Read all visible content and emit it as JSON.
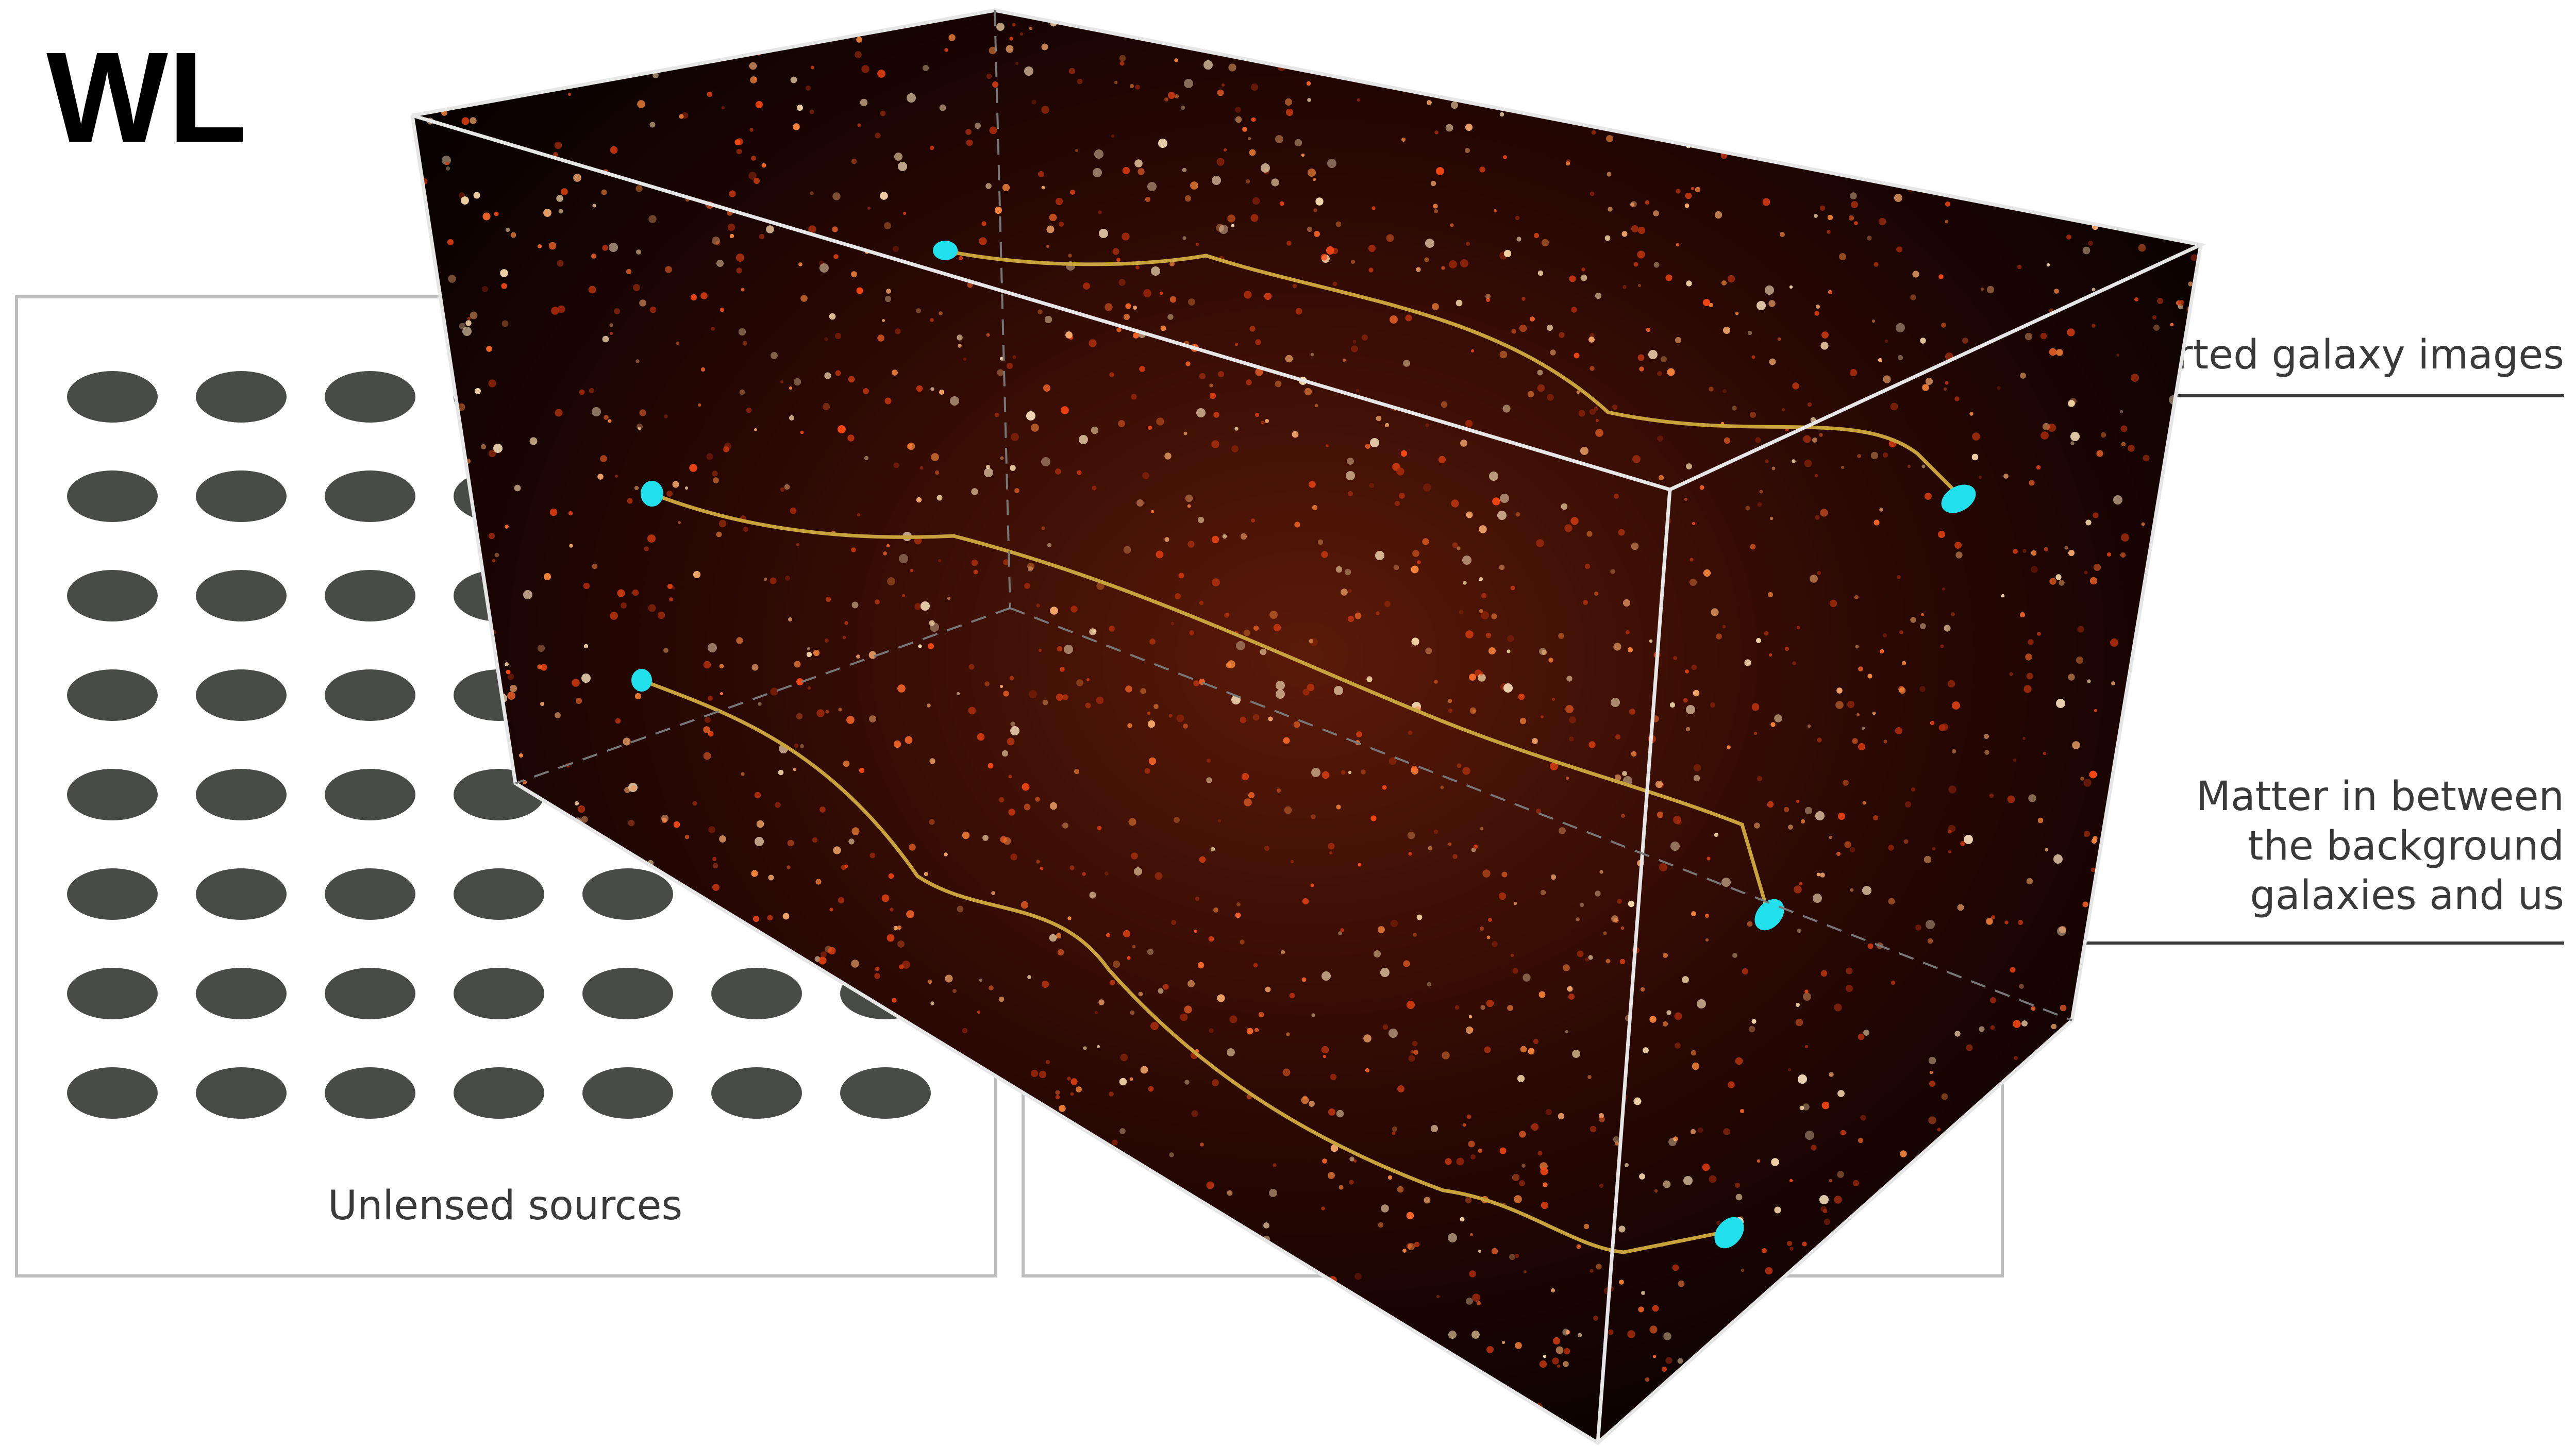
{
  "title": "WL",
  "labels": {
    "unlensed": "Unlensed sources",
    "distorted": "orted galaxy images",
    "matter": [
      "Matter in between",
      "the background",
      "galaxies and us"
    ]
  },
  "colors": {
    "panel_border": "#bdbdbd",
    "ellipse": "#484b47",
    "box_edge": "#e6e6e6",
    "cube_fill": "#050101",
    "dm_web": "#ff5a1a",
    "galaxy": "#21e0ec",
    "light_path": "#c8a23a"
  },
  "icons": {
    "source_galaxy": "gray-ellipse",
    "lensed_galaxy": "cyan-ellipse"
  }
}
